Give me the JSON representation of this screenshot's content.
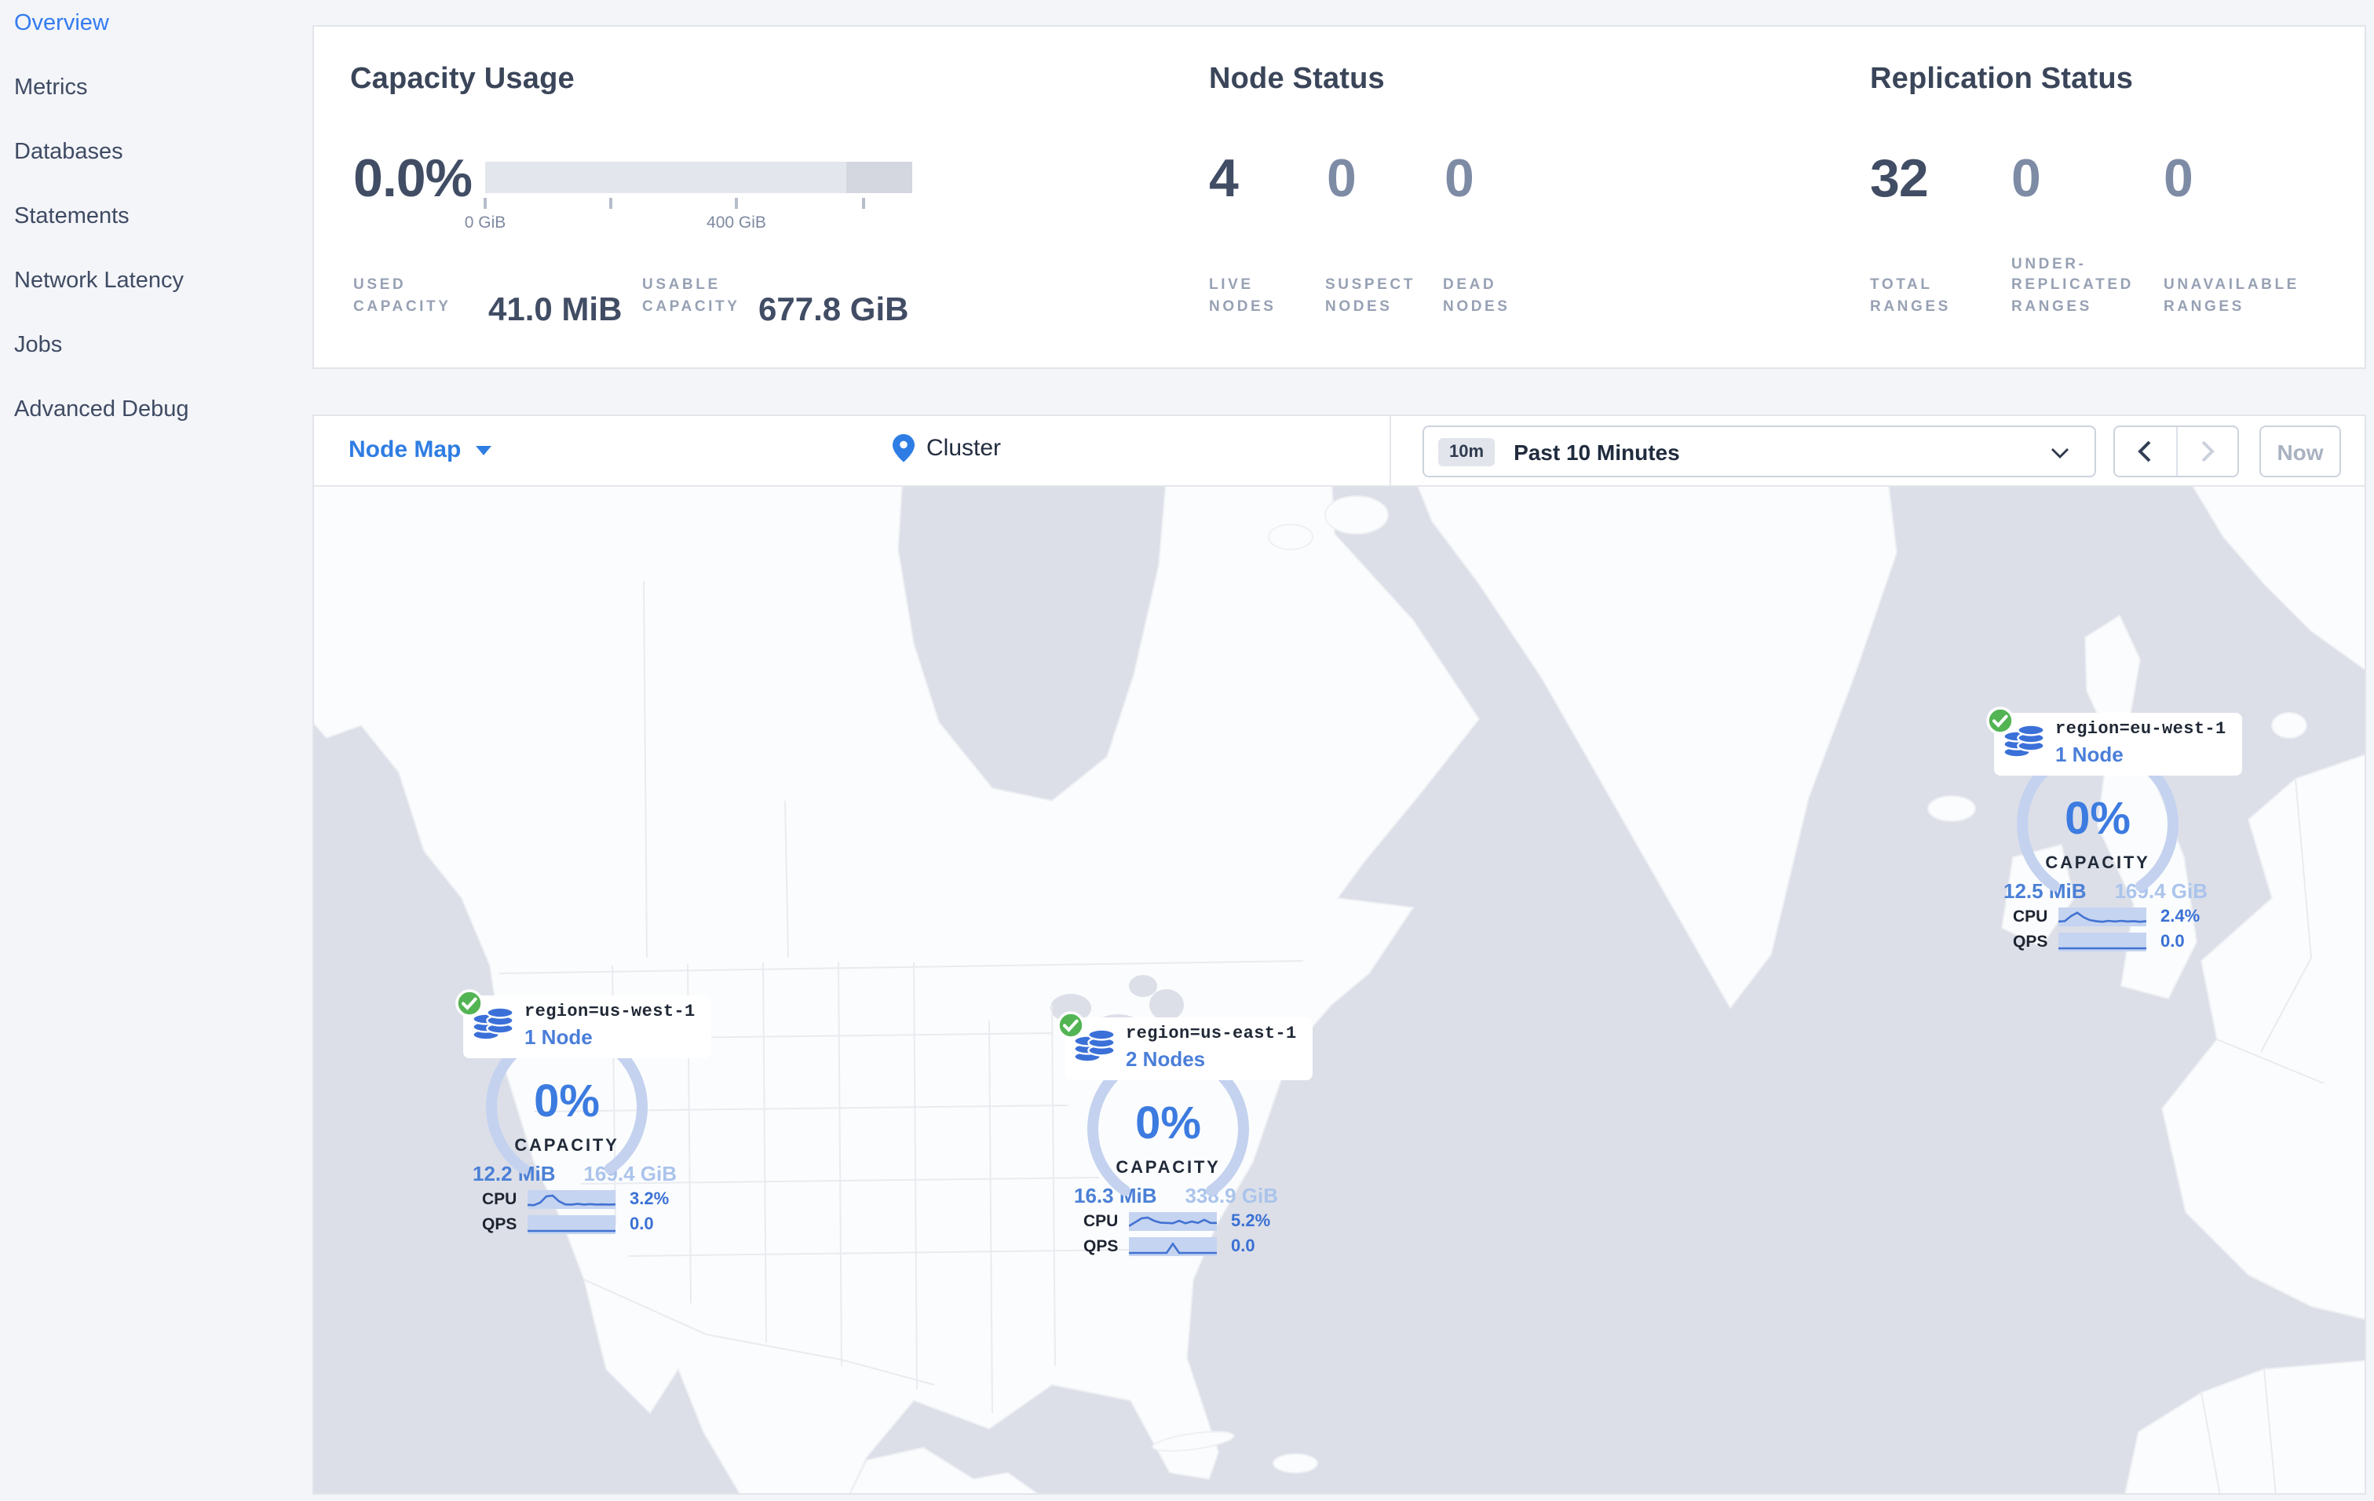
{
  "colors": {
    "accent_blue": "#2f7de2",
    "link_blue": "#347bef",
    "healthy_green": "#53b453",
    "gauge_blue": "#3c7be0"
  },
  "sidebar": {
    "items": [
      {
        "label": "Overview",
        "active": true
      },
      {
        "label": "Metrics",
        "active": false
      },
      {
        "label": "Databases",
        "active": false
      },
      {
        "label": "Statements",
        "active": false
      },
      {
        "label": "Network Latency",
        "active": false
      },
      {
        "label": "Jobs",
        "active": false
      },
      {
        "label": "Advanced Debug",
        "active": false
      }
    ]
  },
  "stats": {
    "capacity": {
      "title": "Capacity Usage",
      "percent": "0.0%",
      "bar_tick_labels": [
        "0 GiB",
        "400 GiB"
      ],
      "used_label": "USED CAPACITY",
      "used_value": "41.0 MiB",
      "usable_label": "USABLE CAPACITY",
      "usable_value": "677.8 GiB"
    },
    "nodes": {
      "title": "Node Status",
      "items": [
        {
          "value": "4",
          "label": "LIVE NODES"
        },
        {
          "value": "0",
          "label": "SUSPECT NODES"
        },
        {
          "value": "0",
          "label": "DEAD NODES"
        }
      ]
    },
    "replication": {
      "title": "Replication Status",
      "items": [
        {
          "value": "32",
          "label": "TOTAL RANGES"
        },
        {
          "value": "0",
          "label": "UNDER-REPLICATED RANGES"
        },
        {
          "value": "0",
          "label": "UNAVAILABLE RANGES"
        }
      ]
    }
  },
  "toolbar": {
    "view_selector": "Node Map",
    "breadcrumb": "Cluster",
    "time": {
      "badge": "10m",
      "label": "Past 10 Minutes"
    },
    "now_label": "Now"
  },
  "regions": [
    {
      "name": "region=us-west-1",
      "nodes": "1 Node",
      "pct": "0%",
      "cap_label": "CAPACITY",
      "used": "12.2 MiB",
      "total": "169.4 GiB",
      "cpu_label": "CPU",
      "cpu_value": "3.2%",
      "qps_label": "QPS",
      "qps_value": "0.0",
      "cpu_series": [
        0.12,
        0.1,
        0.28,
        0.72,
        0.78,
        0.38,
        0.16,
        0.14,
        0.2,
        0.14,
        0.18,
        0.14,
        0.16,
        0.14,
        0.15
      ],
      "qps_series": [
        0.05,
        0.05,
        0.05,
        0.05,
        0.05,
        0.05,
        0.05,
        0.05,
        0.05,
        0.05,
        0.05,
        0.05,
        0.05,
        0.05,
        0.05
      ]
    },
    {
      "name": "region=us-east-1",
      "nodes": "2 Nodes",
      "pct": "0%",
      "cap_label": "CAPACITY",
      "used": "16.3 MiB",
      "total": "338.9 GiB",
      "cpu_label": "CPU",
      "cpu_value": "5.2%",
      "qps_label": "QPS",
      "qps_value": "0.0",
      "cpu_series": [
        0.18,
        0.45,
        0.72,
        0.78,
        0.55,
        0.42,
        0.4,
        0.38,
        0.55,
        0.38,
        0.5,
        0.4,
        0.62,
        0.4,
        0.4
      ],
      "qps_series": [
        0.06,
        0.06,
        0.06,
        0.06,
        0.06,
        0.06,
        0.06,
        0.7,
        0.06,
        0.06,
        0.06,
        0.06,
        0.06,
        0.06,
        0.06
      ]
    },
    {
      "name": "region=eu-west-1",
      "nodes": "1 Node",
      "pct": "0%",
      "cap_label": "CAPACITY",
      "used": "12.5 MiB",
      "total": "169.4 GiB",
      "cpu_label": "CPU",
      "cpu_value": "2.4%",
      "qps_label": "QPS",
      "qps_value": "0.0",
      "cpu_series": [
        0.18,
        0.2,
        0.55,
        0.8,
        0.48,
        0.28,
        0.2,
        0.16,
        0.22,
        0.18,
        0.22,
        0.18,
        0.2,
        0.16,
        0.2
      ],
      "qps_series": [
        0.05,
        0.05,
        0.05,
        0.05,
        0.05,
        0.05,
        0.05,
        0.05,
        0.05,
        0.05,
        0.05,
        0.05,
        0.05,
        0.05,
        0.05
      ]
    }
  ]
}
